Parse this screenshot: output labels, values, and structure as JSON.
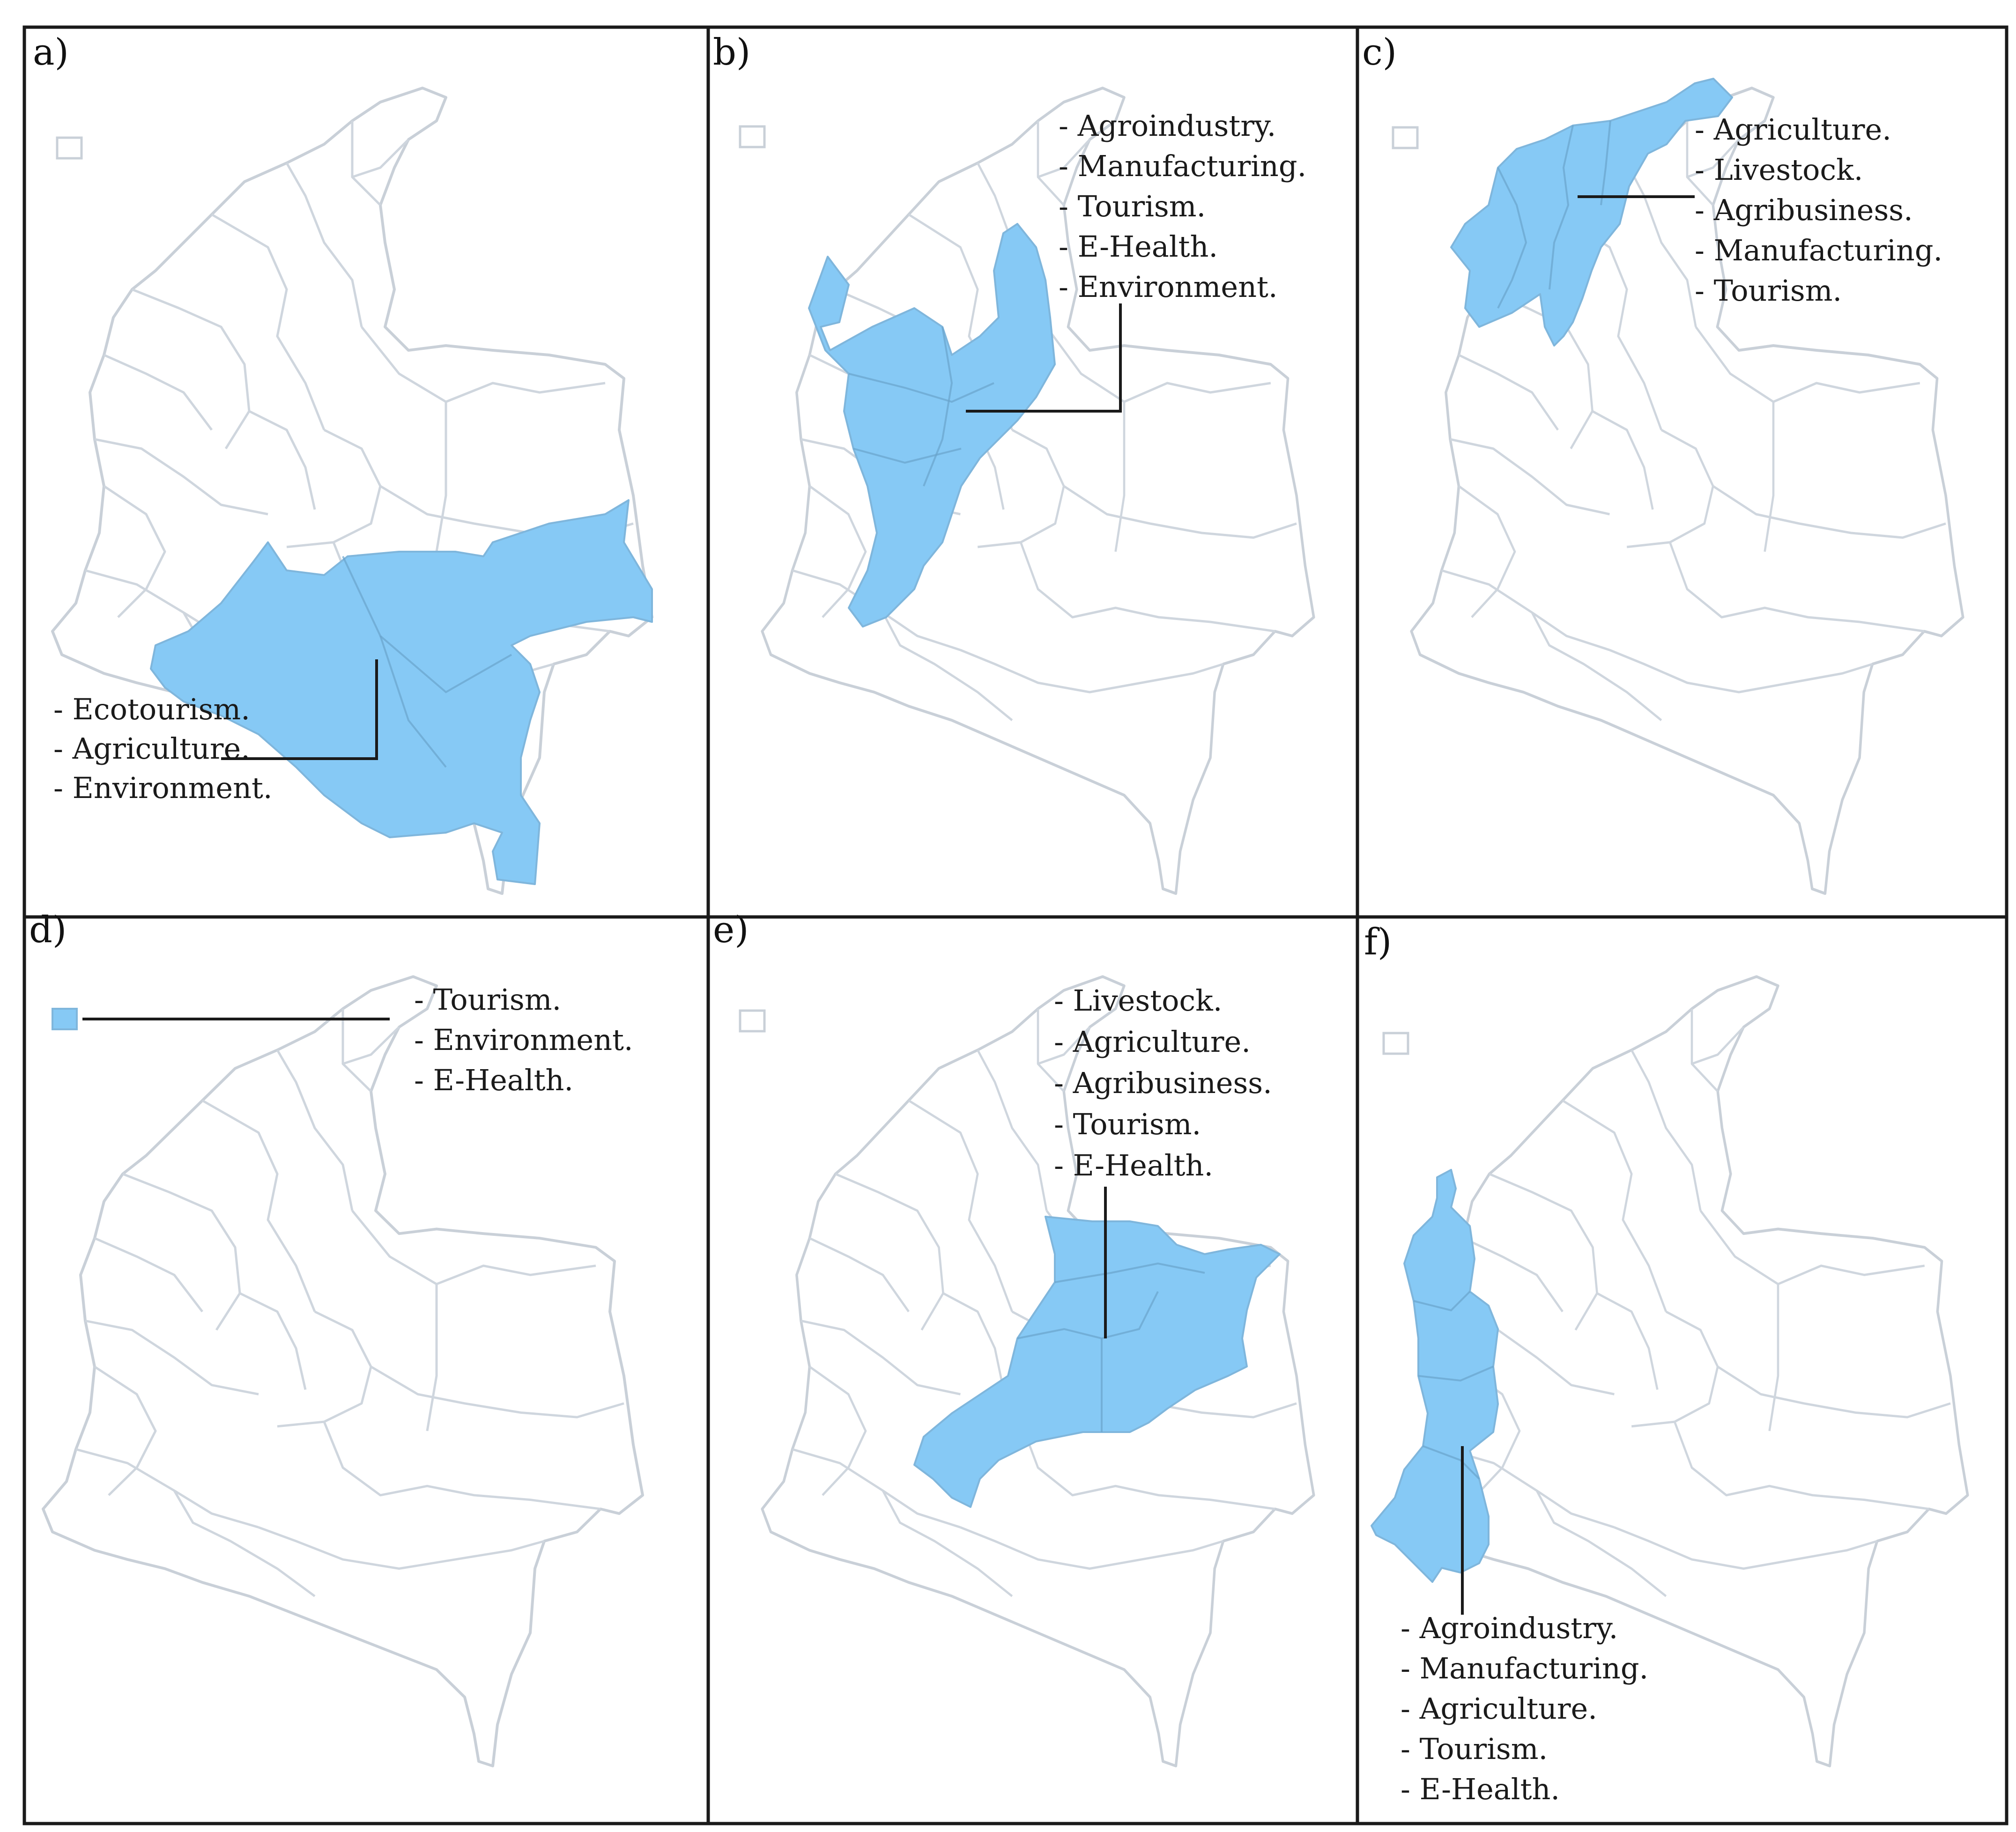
{
  "colors": {
    "region_fill": "#86c9f5",
    "region_edge": "#7fb6dc",
    "map_outline": "#c9d0d8",
    "frame": "#1a1a1a"
  },
  "panels": [
    {
      "label": "a)",
      "sectors": [
        "- Ecotourism.",
        "- Agriculture.",
        "- Environment."
      ]
    },
    {
      "label": "b)",
      "sectors": [
        "- Agroindustry.",
        "- Manufacturing.",
        "- Tourism.",
        "- E-Health.",
        "- Environment."
      ]
    },
    {
      "label": "c)",
      "sectors": [
        "- Agriculture.",
        "- Livestock.",
        "- Agribusiness.",
        "- Manufacturing.",
        "- Tourism."
      ]
    },
    {
      "label": "d)",
      "sectors": [
        "- Tourism.",
        "- Environment.",
        "- E-Health."
      ]
    },
    {
      "label": "e)",
      "sectors": [
        "- Livestock.",
        "- Agriculture.",
        "- Agribusiness.",
        "- Tourism.",
        "- E-Health."
      ]
    },
    {
      "label": "f)",
      "sectors": [
        "- Agroindustry.",
        "- Manufacturing.",
        "- Agriculture.",
        "- Tourism.",
        "- E-Health."
      ]
    }
  ]
}
